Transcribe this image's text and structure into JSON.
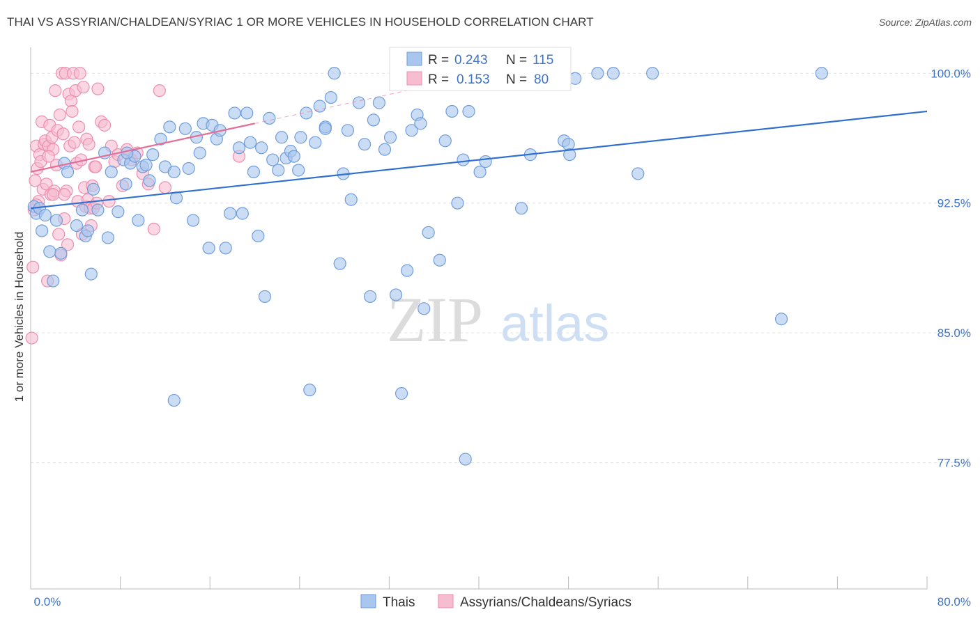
{
  "header": {
    "title": "THAI VS ASSYRIAN/CHALDEAN/SYRIAC 1 OR MORE VEHICLES IN HOUSEHOLD CORRELATION CHART",
    "source": "Source: ZipAtlas.com"
  },
  "watermark": {
    "zip": "ZIP",
    "atlas": "atlas"
  },
  "legend": {
    "r_label": "R =",
    "n_label": "N =",
    "rows": [
      {
        "r": "0.243",
        "n": "115",
        "color": "#6fa0dc"
      },
      {
        "r": "0.153",
        "n": "80",
        "color": "#f28fb0"
      }
    ]
  },
  "colors": {
    "blue_fill": "#a9c6ee",
    "blue_stroke": "#6f9ddb",
    "blue_line": "#2f6fd0",
    "pink_fill": "#f7bcd0",
    "pink_stroke": "#ee8eb0",
    "pink_line": "#e46c96",
    "tick_text": "#3f74c6"
  },
  "chart_data": {
    "type": "scatter",
    "title": "THAI VS ASSYRIAN/CHALDEAN/SYRIAC 1 OR MORE VEHICLES IN HOUSEHOLD CORRELATION CHART",
    "xlabel": "",
    "ylabel": "1 or more Vehicles in Household",
    "xlim": [
      0,
      80
    ],
    "ylim": [
      70.2,
      101.5
    ],
    "x_tick_labels": [
      "0.0%",
      "80.0%"
    ],
    "y_ticks": [
      77.5,
      85.0,
      92.5,
      100.0
    ],
    "y_tick_labels": [
      "77.5%",
      "85.0%",
      "92.5%",
      "100.0%"
    ],
    "grid": true,
    "legend_position": "top-center",
    "series": [
      {
        "name": "Thais",
        "r": 0.243,
        "n": 115,
        "trend": {
          "x": [
            0,
            80
          ],
          "y": [
            92.2,
            97.8
          ]
        },
        "points": [
          [
            0.3,
            92.3
          ],
          [
            0.5,
            91.9
          ],
          [
            0.8,
            92.2
          ],
          [
            1.0,
            90.9
          ],
          [
            1.3,
            91.8
          ],
          [
            1.7,
            89.7
          ],
          [
            2.0,
            88.0
          ],
          [
            2.3,
            91.5
          ],
          [
            2.7,
            89.6
          ],
          [
            3.0,
            94.8
          ],
          [
            3.3,
            94.3
          ],
          [
            4.1,
            91.2
          ],
          [
            4.6,
            92.1
          ],
          [
            4.9,
            90.6
          ],
          [
            5.1,
            90.9
          ],
          [
            5.4,
            88.4
          ],
          [
            5.6,
            93.3
          ],
          [
            6.0,
            92.1
          ],
          [
            6.6,
            95.4
          ],
          [
            6.9,
            90.5
          ],
          [
            7.2,
            94.3
          ],
          [
            7.8,
            92.0
          ],
          [
            8.3,
            95.0
          ],
          [
            8.5,
            93.6
          ],
          [
            8.9,
            94.8
          ],
          [
            9.3,
            95.2
          ],
          [
            9.6,
            91.5
          ],
          [
            10.0,
            94.6
          ],
          [
            10.3,
            94.7
          ],
          [
            10.6,
            93.8
          ],
          [
            10.9,
            95.3
          ],
          [
            11.6,
            96.2
          ],
          [
            12.0,
            94.6
          ],
          [
            12.4,
            96.9
          ],
          [
            12.8,
            94.3
          ],
          [
            13.0,
            92.8
          ],
          [
            13.8,
            96.8
          ],
          [
            14.1,
            94.5
          ],
          [
            14.5,
            91.5
          ],
          [
            14.8,
            96.3
          ],
          [
            15.1,
            95.4
          ],
          [
            15.4,
            97.1
          ],
          [
            15.9,
            89.9
          ],
          [
            16.2,
            97.0
          ],
          [
            16.6,
            96.2
          ],
          [
            16.9,
            96.7
          ],
          [
            17.4,
            89.9
          ],
          [
            17.8,
            91.9
          ],
          [
            18.2,
            97.7
          ],
          [
            18.6,
            95.7
          ],
          [
            18.9,
            91.9
          ],
          [
            19.3,
            97.7
          ],
          [
            19.6,
            96.0
          ],
          [
            19.9,
            94.3
          ],
          [
            20.3,
            90.6
          ],
          [
            20.6,
            95.7
          ],
          [
            20.9,
            87.1
          ],
          [
            21.3,
            97.4
          ],
          [
            21.6,
            95.0
          ],
          [
            22.1,
            94.4
          ],
          [
            22.4,
            96.3
          ],
          [
            22.8,
            95.1
          ],
          [
            23.2,
            95.5
          ],
          [
            23.5,
            95.2
          ],
          [
            23.9,
            94.4
          ],
          [
            24.1,
            96.3
          ],
          [
            24.6,
            97.7
          ],
          [
            24.9,
            81.7
          ],
          [
            25.4,
            96.0
          ],
          [
            25.8,
            98.1
          ],
          [
            26.3,
            96.9
          ],
          [
            26.8,
            98.6
          ],
          [
            27.1,
            100.0
          ],
          [
            27.6,
            89.0
          ],
          [
            27.9,
            94.2
          ],
          [
            28.3,
            96.7
          ],
          [
            28.6,
            92.7
          ],
          [
            29.3,
            98.3
          ],
          [
            29.8,
            95.9
          ],
          [
            30.3,
            87.1
          ],
          [
            30.6,
            97.3
          ],
          [
            31.1,
            98.3
          ],
          [
            31.6,
            95.6
          ],
          [
            32.1,
            96.3
          ],
          [
            32.6,
            87.2
          ],
          [
            33.1,
            81.5
          ],
          [
            33.6,
            88.6
          ],
          [
            34.0,
            96.7
          ],
          [
            34.5,
            97.6
          ],
          [
            34.8,
            97.1
          ],
          [
            35.1,
            86.4
          ],
          [
            35.5,
            90.8
          ],
          [
            35.9,
            100.0
          ],
          [
            36.5,
            89.2
          ],
          [
            37.0,
            96.1
          ],
          [
            37.6,
            97.8
          ],
          [
            38.1,
            92.5
          ],
          [
            38.6,
            95.0
          ],
          [
            38.8,
            77.7
          ],
          [
            39.1,
            97.8
          ],
          [
            40.1,
            94.3
          ],
          [
            40.6,
            94.9
          ],
          [
            40.9,
            100.0
          ],
          [
            41.6,
            100.0
          ],
          [
            43.1,
            100.0
          ],
          [
            43.8,
            92.2
          ],
          [
            44.6,
            95.3
          ],
          [
            47.6,
            96.1
          ],
          [
            48.0,
            95.9
          ],
          [
            48.1,
            95.3
          ],
          [
            48.6,
            99.7
          ],
          [
            50.6,
            100.0
          ],
          [
            52.0,
            100.0
          ],
          [
            54.2,
            94.2
          ],
          [
            55.5,
            100.0
          ],
          [
            67.0,
            85.8
          ],
          [
            70.6,
            100.0
          ],
          [
            12.8,
            81.1
          ],
          [
            8.6,
            95.4
          ],
          [
            26.3,
            96.8
          ]
        ]
      },
      {
        "name": "Assyrians/Chaldeans/Syriacs",
        "r": 0.153,
        "n": 80,
        "trend": {
          "x": [
            0,
            20
          ],
          "y": [
            94.3,
            97.1
          ]
        },
        "points": [
          [
            0.1,
            84.7
          ],
          [
            0.2,
            88.8
          ],
          [
            0.3,
            92.1
          ],
          [
            0.4,
            93.8
          ],
          [
            0.5,
            95.8
          ],
          [
            0.6,
            94.5
          ],
          [
            0.7,
            92.6
          ],
          [
            0.8,
            95.3
          ],
          [
            0.9,
            94.9
          ],
          [
            1.0,
            97.2
          ],
          [
            1.1,
            93.3
          ],
          [
            1.2,
            95.9
          ],
          [
            1.3,
            96.1
          ],
          [
            1.4,
            93.6
          ],
          [
            1.5,
            88.0
          ],
          [
            1.6,
            95.8
          ],
          [
            1.7,
            97.0
          ],
          [
            1.8,
            93.0
          ],
          [
            1.9,
            96.3
          ],
          [
            2.0,
            95.6
          ],
          [
            2.1,
            93.2
          ],
          [
            2.2,
            99.0
          ],
          [
            2.3,
            94.7
          ],
          [
            2.4,
            96.7
          ],
          [
            2.5,
            90.7
          ],
          [
            2.6,
            97.6
          ],
          [
            2.7,
            89.5
          ],
          [
            2.8,
            100.0
          ],
          [
            2.9,
            96.5
          ],
          [
            3.0,
            91.6
          ],
          [
            3.1,
            100.0
          ],
          [
            3.2,
            93.2
          ],
          [
            3.3,
            90.1
          ],
          [
            3.4,
            98.8
          ],
          [
            3.5,
            95.8
          ],
          [
            3.6,
            98.4
          ],
          [
            3.7,
            97.8
          ],
          [
            3.8,
            100.0
          ],
          [
            3.9,
            96.0
          ],
          [
            4.0,
            99.0
          ],
          [
            4.1,
            94.8
          ],
          [
            4.2,
            92.6
          ],
          [
            4.3,
            96.9
          ],
          [
            4.4,
            100.0
          ],
          [
            4.5,
            95.0
          ],
          [
            4.6,
            90.7
          ],
          [
            4.7,
            99.2
          ],
          [
            4.8,
            93.4
          ],
          [
            4.9,
            92.3
          ],
          [
            5.0,
            96.2
          ],
          [
            5.1,
            92.7
          ],
          [
            5.2,
            95.9
          ],
          [
            5.3,
            92.2
          ],
          [
            5.4,
            91.2
          ],
          [
            5.5,
            93.5
          ],
          [
            5.6,
            92.2
          ],
          [
            5.7,
            94.6
          ],
          [
            5.8,
            94.6
          ],
          [
            5.9,
            92.5
          ],
          [
            6.0,
            99.1
          ],
          [
            6.3,
            97.2
          ],
          [
            6.6,
            97.0
          ],
          [
            7.0,
            92.6
          ],
          [
            7.2,
            95.8
          ],
          [
            7.5,
            94.9
          ],
          [
            7.8,
            95.3
          ],
          [
            8.2,
            93.5
          ],
          [
            8.6,
            95.6
          ],
          [
            9.0,
            95.0
          ],
          [
            9.5,
            95.4
          ],
          [
            10.0,
            94.2
          ],
          [
            10.5,
            93.6
          ],
          [
            11.0,
            91.0
          ],
          [
            11.5,
            99.0
          ],
          [
            12.0,
            93.4
          ],
          [
            18.6,
            95.2
          ],
          [
            0.5,
            92.4
          ],
          [
            1.6,
            95.2
          ],
          [
            2.0,
            93.0
          ],
          [
            3.0,
            93.0
          ]
        ]
      }
    ]
  },
  "bottom_legend": {
    "items": [
      {
        "label": "Thais"
      },
      {
        "label": "Assyrians/Chaldeans/Syriacs"
      }
    ]
  }
}
